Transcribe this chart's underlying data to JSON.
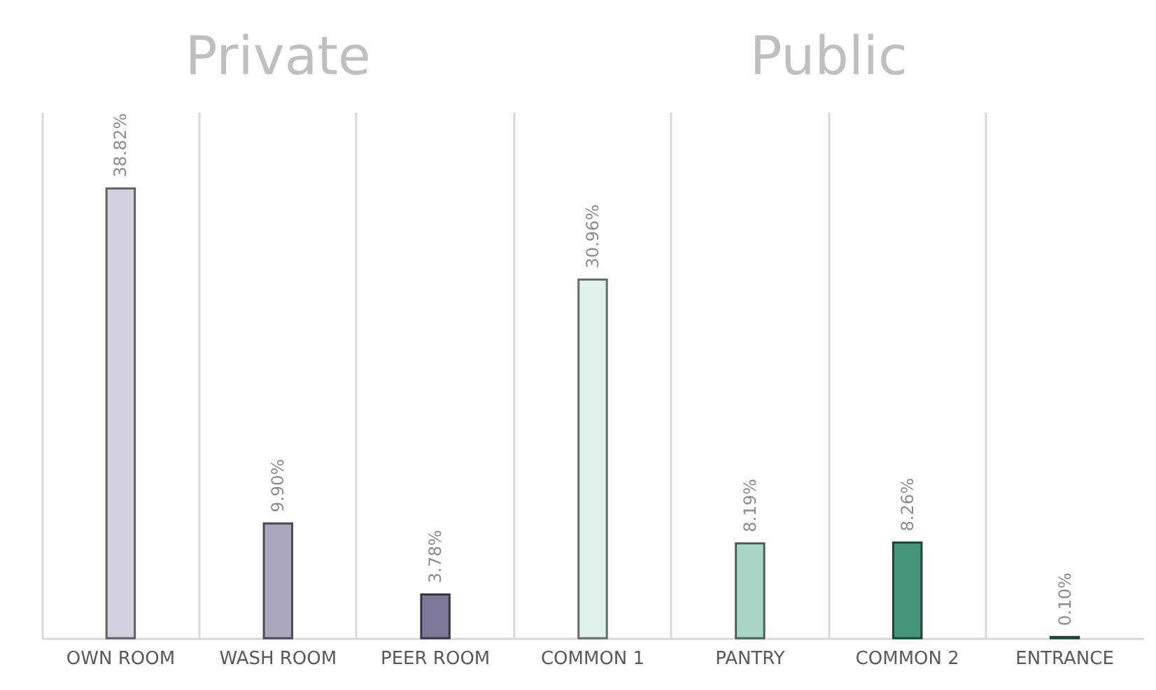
{
  "chart_data": {
    "type": "bar",
    "categories": [
      "OWN ROOM",
      "WASH ROOM",
      "PEER ROOM",
      "COMMON 1",
      "PANTRY",
      "COMMON 2",
      "ENTRANCE"
    ],
    "values": [
      38.82,
      9.9,
      3.78,
      30.96,
      8.19,
      8.26,
      0.1
    ],
    "colors": [
      "#d2d2de",
      "#a9a7bd",
      "#7b7997",
      "#e1f2ea",
      "#a9d6c8",
      "#43967d",
      "#43967d"
    ],
    "value_labels": [
      "38.82%",
      "9.90%",
      "3.78%",
      "30.96%",
      "8.19%",
      "8.26%",
      "0.10%"
    ],
    "annotations": [
      "Private",
      "Public"
    ],
    "grid": "x"
  }
}
